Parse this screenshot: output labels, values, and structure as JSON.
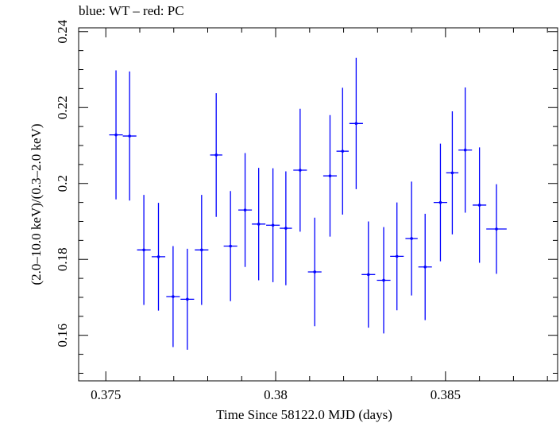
{
  "chart_data": {
    "type": "scatter",
    "title": "blue: WT – red: PC",
    "xlabel": "Time Since 58122.0 MJD (days)",
    "ylabel": "(2.0–10.0 keV)/(0.3–2.0 keV)",
    "xlim": [
      0.3742,
      0.3883
    ],
    "ylim": [
      0.148,
      0.241
    ],
    "x_ticks": [
      0.375,
      0.38,
      0.385
    ],
    "x_tick_labels": [
      "0.375",
      "0.38",
      "0.385"
    ],
    "y_ticks": [
      0.16,
      0.18,
      0.2,
      0.22,
      0.24
    ],
    "y_tick_labels": [
      "0.16",
      "0.18",
      "0.2",
      "0.22",
      "0.24"
    ],
    "grid": false,
    "series": [
      {
        "color": "#0000ff",
        "points": [
          {
            "x": 0.3753,
            "y": 0.2128,
            "xerr": 0.0002,
            "yerr": 0.017
          },
          {
            "x": 0.3757,
            "y": 0.2125,
            "xerr": 0.0002,
            "yerr": 0.017
          },
          {
            "x": 0.37612,
            "y": 0.1825,
            "xerr": 0.0002,
            "yerr": 0.0145
          },
          {
            "x": 0.37655,
            "y": 0.1807,
            "xerr": 0.0002,
            "yerr": 0.0142
          },
          {
            "x": 0.37698,
            "y": 0.1702,
            "xerr": 0.0002,
            "yerr": 0.0133
          },
          {
            "x": 0.3774,
            "y": 0.1695,
            "xerr": 0.0002,
            "yerr": 0.0133
          },
          {
            "x": 0.37782,
            "y": 0.1825,
            "xerr": 0.0002,
            "yerr": 0.0145
          },
          {
            "x": 0.37825,
            "y": 0.2075,
            "xerr": 0.00018,
            "yerr": 0.0163
          },
          {
            "x": 0.37867,
            "y": 0.1835,
            "xerr": 0.0002,
            "yerr": 0.0145
          },
          {
            "x": 0.3791,
            "y": 0.193,
            "xerr": 0.0002,
            "yerr": 0.015
          },
          {
            "x": 0.3795,
            "y": 0.1893,
            "xerr": 0.0002,
            "yerr": 0.0148
          },
          {
            "x": 0.37992,
            "y": 0.189,
            "xerr": 0.0002,
            "yerr": 0.015
          },
          {
            "x": 0.3803,
            "y": 0.1882,
            "xerr": 0.00018,
            "yerr": 0.015
          },
          {
            "x": 0.38072,
            "y": 0.2035,
            "xerr": 0.0002,
            "yerr": 0.0162
          },
          {
            "x": 0.38115,
            "y": 0.1767,
            "xerr": 0.0002,
            "yerr": 0.0143
          },
          {
            "x": 0.3816,
            "y": 0.202,
            "xerr": 0.0002,
            "yerr": 0.016
          },
          {
            "x": 0.38197,
            "y": 0.2085,
            "xerr": 0.00018,
            "yerr": 0.0167
          },
          {
            "x": 0.38237,
            "y": 0.2158,
            "xerr": 0.0002,
            "yerr": 0.0173
          },
          {
            "x": 0.38273,
            "y": 0.176,
            "xerr": 0.0002,
            "yerr": 0.014
          },
          {
            "x": 0.38318,
            "y": 0.1745,
            "xerr": 0.0002,
            "yerr": 0.014
          },
          {
            "x": 0.38357,
            "y": 0.1808,
            "xerr": 0.0002,
            "yerr": 0.0142
          },
          {
            "x": 0.384,
            "y": 0.1855,
            "xerr": 0.00018,
            "yerr": 0.015
          },
          {
            "x": 0.3844,
            "y": 0.178,
            "xerr": 0.0002,
            "yerr": 0.014
          },
          {
            "x": 0.38485,
            "y": 0.195,
            "xerr": 0.0002,
            "yerr": 0.0155
          },
          {
            "x": 0.3852,
            "y": 0.2028,
            "xerr": 0.00018,
            "yerr": 0.0162
          },
          {
            "x": 0.38558,
            "y": 0.2088,
            "xerr": 0.0002,
            "yerr": 0.0165
          },
          {
            "x": 0.386,
            "y": 0.1943,
            "xerr": 0.0002,
            "yerr": 0.0152
          },
          {
            "x": 0.3865,
            "y": 0.188,
            "xerr": 0.0003,
            "yerr": 0.0118
          }
        ]
      }
    ]
  }
}
